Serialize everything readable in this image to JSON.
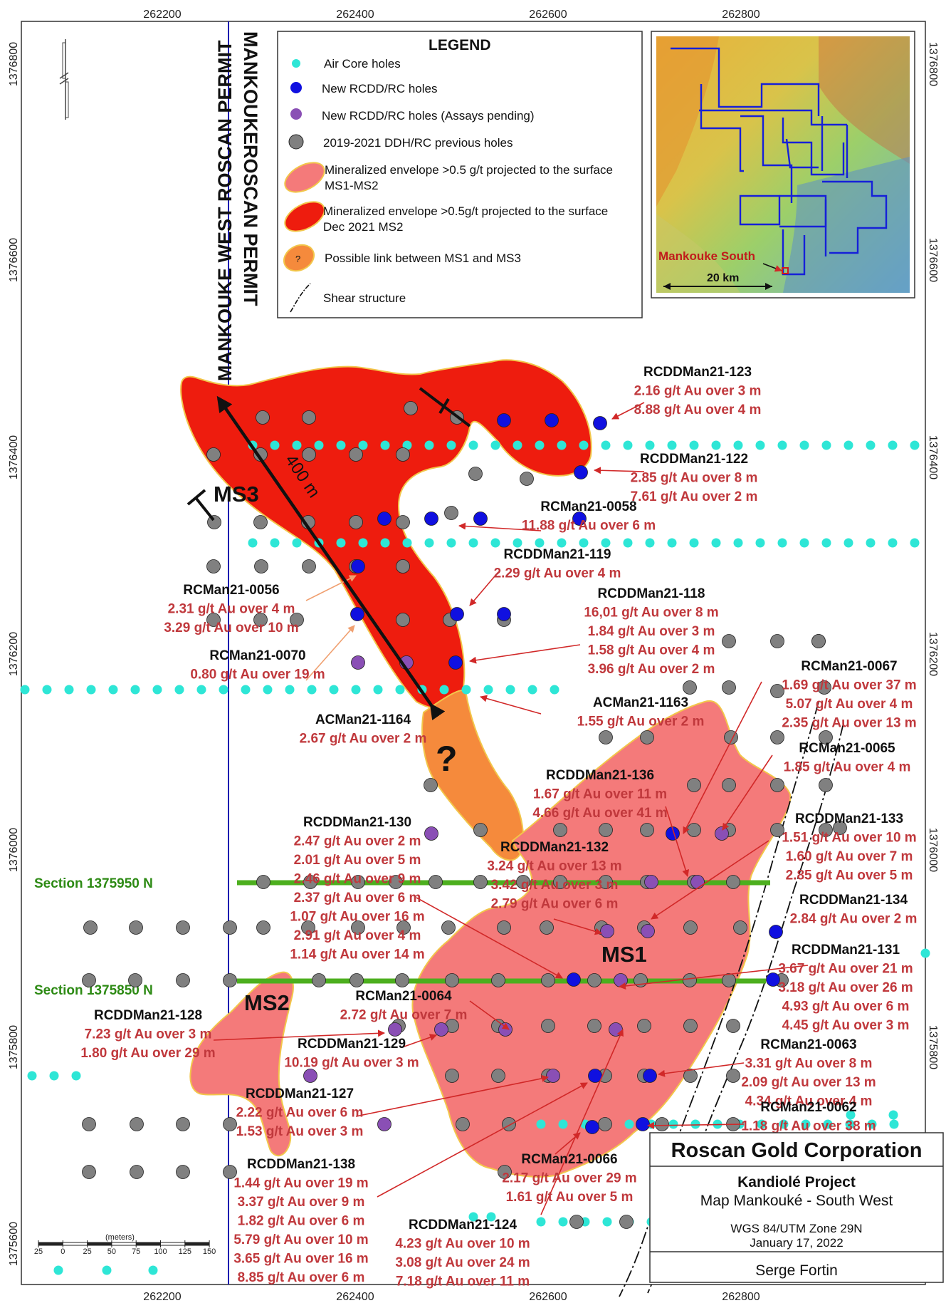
{
  "axes": {
    "x_ticks": [
      "262200",
      "262400",
      "262600",
      "262800"
    ],
    "y_ticks": [
      "1376800",
      "1376600",
      "1376400",
      "1376200",
      "1376000",
      "1375800",
      "1375600"
    ]
  },
  "permits": {
    "west": "MANKOUKE WEST ROSCAN PERMIT",
    "east": "MANKOUKEROSCAN PERMIT"
  },
  "legend": {
    "title": "LEGEND",
    "items": [
      {
        "label": "Air Core holes",
        "color": "#2ee6d6"
      },
      {
        "label": "New RCDD/RC holes",
        "color": "#1010e0"
      },
      {
        "label": "New RCDD/RC holes (Assays pending)",
        "color": "#8a4fb5"
      },
      {
        "label": "2019-2021 DDH/RC previous holes",
        "color": "#808080"
      },
      {
        "label": "Mineralized envelope >0.5 g/t projected to the surface",
        "label2": "MS1-MS2",
        "color": "#f47a7a"
      },
      {
        "label": "Mineralized envelope >0.5g/t projected to the surface",
        "label2": "Dec 2021 MS2",
        "color": "#ee1c0e"
      },
      {
        "label": "Possible link between MS1 and MS3",
        "color": "#f58a3c"
      },
      {
        "label": "Shear structure",
        "color": "#111111"
      }
    ]
  },
  "inset": {
    "label": "Mankouke South",
    "scale": "20 km"
  },
  "zones": {
    "ms1": "MS1",
    "ms2": "MS2",
    "ms3": "MS3",
    "question": "?",
    "distance": "400 m"
  },
  "sections": [
    {
      "label": "Section 1375950 N",
      "color": "#4caf1e"
    },
    {
      "label": "Section 1375850 N",
      "color": "#4caf1e"
    }
  ],
  "holes": [
    {
      "name": "RCDDMan21-123",
      "values": [
        "2.16 g/t Au over 3 m",
        "8.88 g/t Au over 4 m"
      ]
    },
    {
      "name": "RCDDMan21-122",
      "values": [
        "2.85 g/t Au over 8 m",
        "7.61 g/t Au over 2 m"
      ]
    },
    {
      "name": "RCMan21-0058",
      "values": [
        "11.88 g/t Au over 6 m"
      ]
    },
    {
      "name": "RCDDMan21-119",
      "values": [
        "2.29 g/t Au over 4 m"
      ]
    },
    {
      "name": "RCMan21-0056",
      "values": [
        "2.31 g/t Au over 4 m",
        "3.29 g/t Au over 10 m"
      ]
    },
    {
      "name": "RCDDMan21-118",
      "values": [
        "16,01 g/t Au over 8 m",
        "1.84 g/t Au over 3 m",
        "1.58 g/t Au over 4 m",
        "3.96 g/t Au over 2 m"
      ]
    },
    {
      "name": "RCMan21-0070",
      "values": [
        "0.80 g/t Au over 19 m"
      ]
    },
    {
      "name": "RCMan21-0067",
      "values": [
        "1.69 g/t Au over 37 m",
        "5.07 g/t Au over 4 m",
        "2.35 g/t Au over 13 m"
      ]
    },
    {
      "name": "ACMan21-1163",
      "values": [
        "1.55 g/t Au over 2 m"
      ]
    },
    {
      "name": "ACMan21-1164",
      "values": [
        "2.67 g/t Au over 2 m"
      ]
    },
    {
      "name": "RCMan21-0065",
      "values": [
        "1.85 g/t Au over 4 m"
      ]
    },
    {
      "name": "RCDDMan21-136",
      "values": [
        "1.67 g/t Au over 11 m",
        "4.66 g/t Au over 41 m"
      ]
    },
    {
      "name": "RCDDMan21-133",
      "values": [
        "1.51 g/t Au over 10 m",
        "1.60 g/t Au over 7 m",
        "2.85 g/t Au over 5 m"
      ]
    },
    {
      "name": "RCDDMan21-130",
      "values": [
        "2.47 g/t Au over 2 m",
        "2.01 g/t Au over 5 m",
        "2.46 g/t Au over 9 m",
        "2.37 g/t Au over 6 m",
        "1.07 g/t Au over 16 m",
        "2.91 g/t Au over 4 m",
        "1.14 g/t Au over 14 m"
      ]
    },
    {
      "name": "RCDDMan21-132",
      "values": [
        "3.24 g/t Au over 13 m",
        "3.42 g/t Au over 3 m",
        "2.79 g/t Au over 6 m"
      ]
    },
    {
      "name": "RCDDMan21-134",
      "values": [
        "2.84 g/t Au over 2 m"
      ]
    },
    {
      "name": "RCDDMan21-131",
      "values": [
        "3.67 g/t Au over 21 m",
        "3.18 g/t Au over 26 m",
        "4.93 g/t Au over 6 m",
        "4.45 g/t Au over 3 m"
      ]
    },
    {
      "name": "RCMan21-0064",
      "values": [
        "2.72 g/t Au over 7 m"
      ]
    },
    {
      "name": "RCDDMan21-128",
      "values": [
        "7.23 g/t Au over 3 m",
        "1.80 g/t Au over 29 m"
      ]
    },
    {
      "name": "RCDDMan21-129",
      "values": [
        "10.19 g/t Au over 3 m"
      ]
    },
    {
      "name": "RCMan21-0063",
      "values": [
        "3.31 g/t Au over 8 m",
        "2.09 g/t Au over 13 m",
        "4.34 g/t Au over 4 m"
      ]
    },
    {
      "name": "RCDDMan21-127",
      "values": [
        "2.22 g/t Au over 6 m",
        "1.53 g/t Au over 3 m"
      ]
    },
    {
      "name": "RCMan21-0062",
      "values": [
        "1.18 g/t Au over 38 m"
      ]
    },
    {
      "name": "RCMan21-0066",
      "values": [
        "2.17 g/t Au over 29 m",
        "1.61 g/t Au over 5 m"
      ]
    },
    {
      "name": "RCDDMan21-138",
      "values": [
        "1.44 g/t Au over 19 m",
        "3.37 g/t Au over 9 m",
        "1.82 g/t Au over 6 m",
        "5.79 g/t Au over 10 m",
        "3.65 g/t Au over 16 m",
        "8.85 g/t Au over 6 m"
      ]
    },
    {
      "name": "RCDDMan21-124",
      "values": [
        "4.23 g/t Au over 10 m",
        "3.08 g/t Au over 24 m",
        "7.18 g/t Au over 11 m"
      ]
    }
  ],
  "scalebar": {
    "unit": "(meters)",
    "ticks": [
      "25",
      "0",
      "25",
      "50",
      "75",
      "100",
      "125",
      "150"
    ]
  },
  "titleblock": {
    "company": "Roscan Gold Corporation",
    "project": "Kandiolé Project",
    "map": "Map Mankouké - South West",
    "datum": "WGS 84/UTM Zone 29N",
    "date": "January 17, 2022",
    "author": "Serge Fortin"
  }
}
